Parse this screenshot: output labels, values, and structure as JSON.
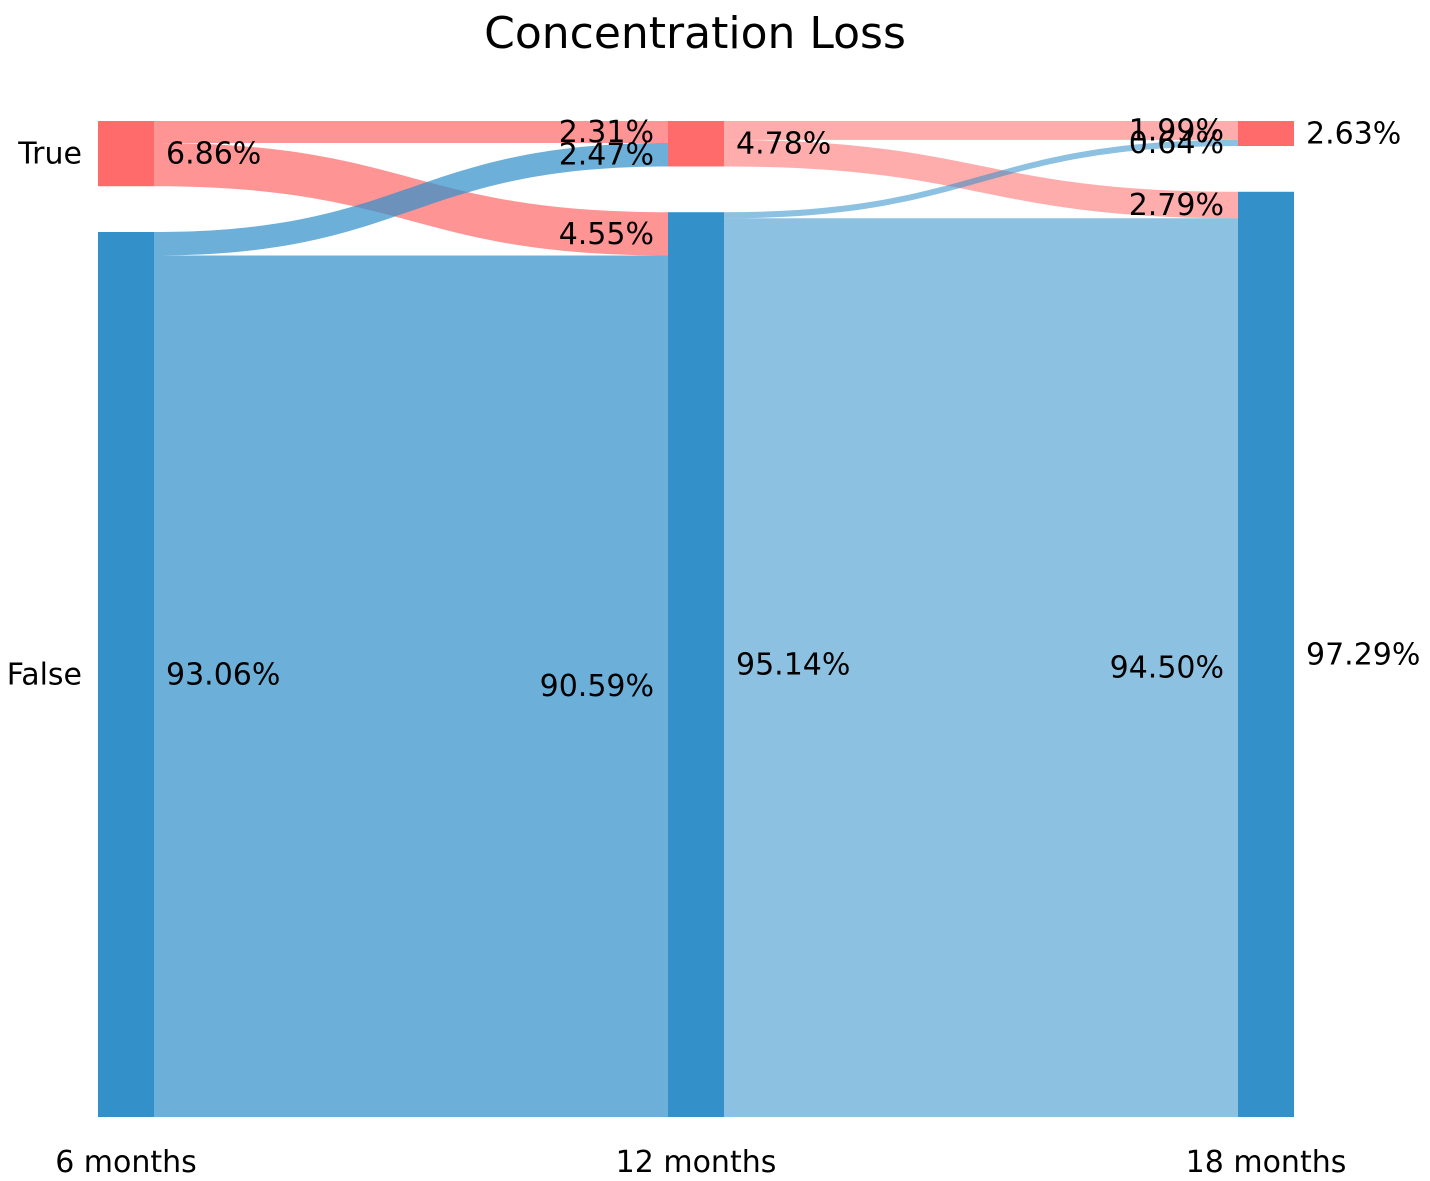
{
  "chart_data": {
    "type": "sankey",
    "title": "Concentration Loss",
    "stages": [
      "6 months",
      "12 months",
      "18 months"
    ],
    "categories": [
      "True",
      "False"
    ],
    "colors": {
      "True": "#ff6b6b",
      "False": "#3390c9"
    },
    "nodes": [
      {
        "stage": "6 months",
        "category": "True",
        "value": 6.86
      },
      {
        "stage": "6 months",
        "category": "False",
        "value": 93.06
      },
      {
        "stage": "12 months",
        "category": "True",
        "value": 4.78
      },
      {
        "stage": "12 months",
        "category": "False",
        "value": 95.14
      },
      {
        "stage": "18 months",
        "category": "True",
        "value": 2.63
      },
      {
        "stage": "18 months",
        "category": "False",
        "value": 97.29
      }
    ],
    "flows": [
      {
        "from_stage": "6 months",
        "from": "True",
        "to_stage": "12 months",
        "to": "True",
        "value": 2.31
      },
      {
        "from_stage": "6 months",
        "from": "True",
        "to_stage": "12 months",
        "to": "False",
        "value": 4.55
      },
      {
        "from_stage": "6 months",
        "from": "False",
        "to_stage": "12 months",
        "to": "True",
        "value": 2.47
      },
      {
        "from_stage": "6 months",
        "from": "False",
        "to_stage": "12 months",
        "to": "False",
        "value": 90.59
      },
      {
        "from_stage": "12 months",
        "from": "True",
        "to_stage": "18 months",
        "to": "True",
        "value": 1.99
      },
      {
        "from_stage": "12 months",
        "from": "True",
        "to_stage": "18 months",
        "to": "False",
        "value": 2.79
      },
      {
        "from_stage": "12 months",
        "from": "False",
        "to_stage": "18 months",
        "to": "True",
        "value": 0.64
      },
      {
        "from_stage": "12 months",
        "from": "False",
        "to_stage": "18 months",
        "to": "False",
        "value": 94.5
      }
    ],
    "labels": {
      "node_right_6": [
        "6.86%",
        "93.06%"
      ],
      "flow_end_12": [
        "2.31%",
        "2.47%",
        "4.55%",
        "90.59%"
      ],
      "node_right_12": [
        "4.78%",
        "95.14%"
      ],
      "flow_end_18": [
        "1.99%",
        "0.64%",
        "2.79%",
        "94.50%"
      ],
      "node_right_18": [
        "2.63%",
        "97.29%"
      ]
    },
    "row_labels": [
      "True",
      "False"
    ]
  }
}
